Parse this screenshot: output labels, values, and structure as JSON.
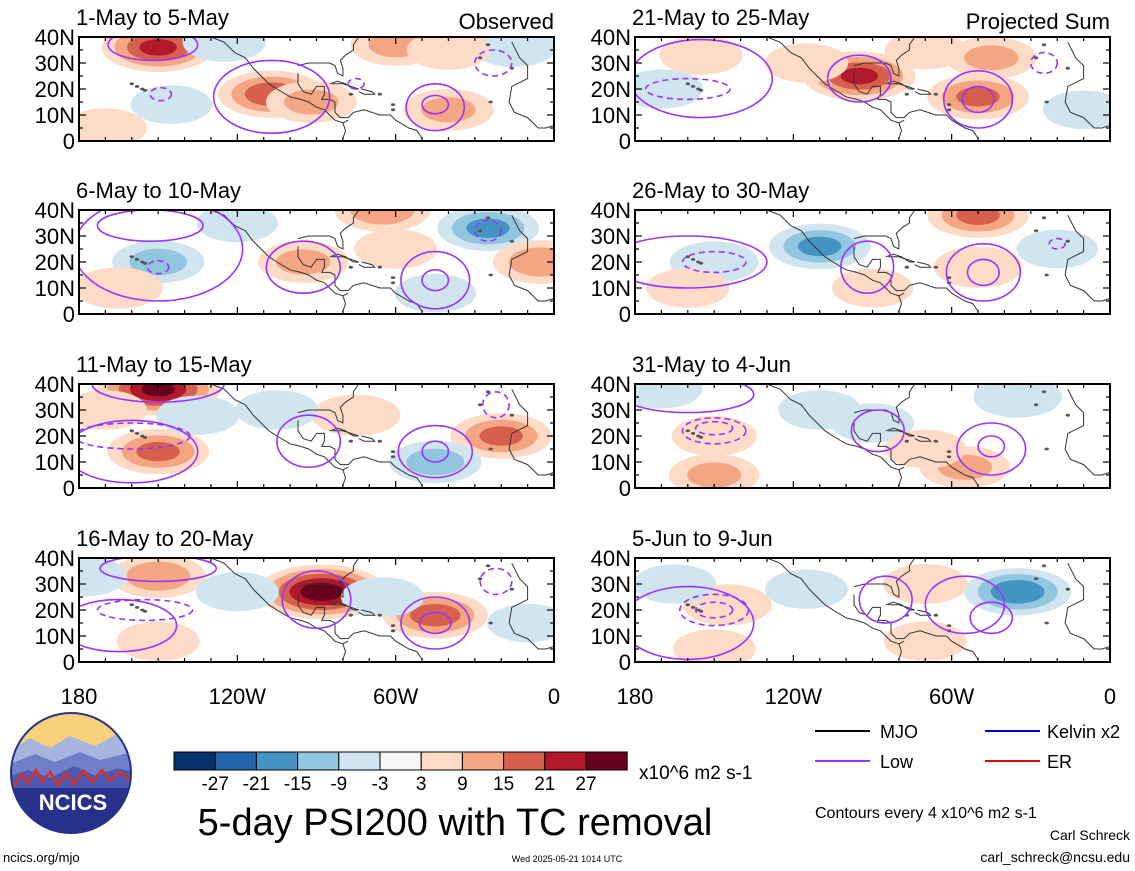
{
  "chart_data": [
    {
      "type": "heatmap",
      "title": "1-May to 5-May",
      "subtitle": "Observed",
      "xlim": [
        180,
        0
      ],
      "ylim": [
        0,
        40
      ],
      "yticks": [
        "0",
        "10N",
        "20N",
        "30N",
        "40N"
      ],
      "fill_blobs": [
        {
          "lon": 150,
          "lat": 36,
          "value": 21
        },
        {
          "lon": 107,
          "lat": 18,
          "value": 18
        },
        {
          "lon": 92,
          "lat": 15,
          "value": 9
        },
        {
          "lon": 40,
          "lat": 12,
          "value": 9
        },
        {
          "lon": 125,
          "lat": 38,
          "value": -5
        },
        {
          "lon": 170,
          "lat": 5,
          "value": 5
        },
        {
          "lon": 60,
          "lat": 37,
          "value": 9
        },
        {
          "lon": 15,
          "lat": 36,
          "value": -5
        },
        {
          "lon": 40,
          "lat": 35,
          "value": 5
        },
        {
          "lon": 145,
          "lat": 14,
          "value": -4
        }
      ],
      "low_contours": [
        {
          "lon": 107,
          "lat": 17,
          "rx": 22,
          "ry": 14,
          "style": "solid"
        },
        {
          "lon": 45,
          "lat": 13,
          "rx": 11,
          "ry": 9,
          "style": "solid"
        },
        {
          "lon": 45,
          "lat": 14,
          "rx": 5,
          "ry": 3.5,
          "style": "solid"
        },
        {
          "lon": 152,
          "lat": 37,
          "rx": 17,
          "ry": 6,
          "style": "solid"
        },
        {
          "lon": 23,
          "lat": 30,
          "rx": 7,
          "ry": 5,
          "style": "dashed"
        },
        {
          "lon": 149,
          "lat": 18,
          "rx": 4,
          "ry": 2.5,
          "style": "dashed"
        },
        {
          "lon": 75,
          "lat": 22,
          "rx": 3,
          "ry": 2,
          "style": "dashed"
        }
      ]
    },
    {
      "type": "heatmap",
      "title": "21-May to 25-May",
      "subtitle": "Projected Sum",
      "xlim": [
        180,
        0
      ],
      "ylim": [
        0,
        40
      ],
      "yticks": [
        "0",
        "10N",
        "20N",
        "30N",
        "40N"
      ],
      "fill_blobs": [
        {
          "lon": 95,
          "lat": 25,
          "value": 21
        },
        {
          "lon": 50,
          "lat": 17,
          "value": 15
        },
        {
          "lon": 155,
          "lat": 33,
          "value": 5
        },
        {
          "lon": 115,
          "lat": 30,
          "value": 5
        },
        {
          "lon": 45,
          "lat": 32,
          "value": 9
        },
        {
          "lon": 170,
          "lat": 20,
          "value": -5
        },
        {
          "lon": 10,
          "lat": 12,
          "value": -4
        },
        {
          "lon": 70,
          "lat": 35,
          "value": 4
        }
      ],
      "low_contours": [
        {
          "lon": 50,
          "lat": 16,
          "rx": 13,
          "ry": 11,
          "style": "solid"
        },
        {
          "lon": 50,
          "lat": 16,
          "rx": 6,
          "ry": 5,
          "style": "solid"
        },
        {
          "lon": 95,
          "lat": 24,
          "rx": 12,
          "ry": 9,
          "style": "solid"
        },
        {
          "lon": 160,
          "lat": 20,
          "rx": 16,
          "ry": 4,
          "style": "dashed"
        },
        {
          "lon": 25,
          "lat": 30,
          "rx": 5,
          "ry": 4,
          "style": "dashed"
        },
        {
          "lon": 155,
          "lat": 24,
          "rx": 27,
          "ry": 15,
          "style": "solid"
        }
      ]
    },
    {
      "type": "heatmap",
      "title": "6-May to 10-May",
      "xlim": [
        180,
        0
      ],
      "ylim": [
        0,
        40
      ],
      "yticks": [
        "0",
        "10N",
        "20N",
        "30N",
        "40N"
      ],
      "fill_blobs": [
        {
          "lon": 150,
          "lat": 20,
          "value": -10
        },
        {
          "lon": 25,
          "lat": 33,
          "value": -15
        },
        {
          "lon": 65,
          "lat": 40,
          "value": 12
        },
        {
          "lon": 95,
          "lat": 20,
          "value": 9
        },
        {
          "lon": 5,
          "lat": 20,
          "value": 12
        },
        {
          "lon": 165,
          "lat": 10,
          "value": 8
        },
        {
          "lon": 120,
          "lat": 35,
          "value": -4
        },
        {
          "lon": 60,
          "lat": 25,
          "value": 5
        },
        {
          "lon": 45,
          "lat": 8,
          "value": -4
        }
      ],
      "low_contours": [
        {
          "lon": 95,
          "lat": 18,
          "rx": 14,
          "ry": 10,
          "style": "solid"
        },
        {
          "lon": 45,
          "lat": 13,
          "rx": 13,
          "ry": 11,
          "style": "solid"
        },
        {
          "lon": 45,
          "lat": 13,
          "rx": 5,
          "ry": 4,
          "style": "solid"
        },
        {
          "lon": 153,
          "lat": 34,
          "rx": 20,
          "ry": 6,
          "style": "solid"
        },
        {
          "lon": 25,
          "lat": 32,
          "rx": 5,
          "ry": 4,
          "style": "dashed"
        },
        {
          "lon": 150,
          "lat": 18,
          "rx": 4,
          "ry": 2.5,
          "style": "dashed"
        },
        {
          "lon": 150,
          "lat": 25,
          "rx": 32,
          "ry": 20,
          "style": "solid"
        }
      ]
    },
    {
      "type": "heatmap",
      "title": "26-May to 30-May",
      "xlim": [
        180,
        0
      ],
      "ylim": [
        0,
        40
      ],
      "yticks": [
        "0",
        "10N",
        "20N",
        "30N",
        "40N"
      ],
      "fill_blobs": [
        {
          "lon": 110,
          "lat": 26,
          "value": -15
        },
        {
          "lon": 150,
          "lat": 20,
          "value": -8
        },
        {
          "lon": 50,
          "lat": 38,
          "value": 15
        },
        {
          "lon": 50,
          "lat": 18,
          "value": 8
        },
        {
          "lon": 160,
          "lat": 10,
          "value": 5
        },
        {
          "lon": 20,
          "lat": 25,
          "value": -4
        },
        {
          "lon": 90,
          "lat": 10,
          "value": 4
        }
      ],
      "low_contours": [
        {
          "lon": 48,
          "lat": 16,
          "rx": 14,
          "ry": 11,
          "style": "solid"
        },
        {
          "lon": 48,
          "lat": 16,
          "rx": 6,
          "ry": 5,
          "style": "solid"
        },
        {
          "lon": 92,
          "lat": 18,
          "rx": 10,
          "ry": 10,
          "style": "solid"
        },
        {
          "lon": 150,
          "lat": 20,
          "rx": 12,
          "ry": 4,
          "style": "dashed"
        },
        {
          "lon": 160,
          "lat": 20,
          "rx": 30,
          "ry": 10,
          "style": "solid"
        },
        {
          "lon": 20,
          "lat": 27,
          "rx": 3,
          "ry": 2,
          "style": "dashed"
        }
      ]
    },
    {
      "type": "heatmap",
      "title": "11-May to 15-May",
      "xlim": [
        180,
        0
      ],
      "ylim": [
        0,
        40
      ],
      "yticks": [
        "0",
        "10N",
        "20N",
        "30N",
        "40N"
      ],
      "fill_blobs": [
        {
          "lon": 150,
          "lat": 38,
          "value": 27
        },
        {
          "lon": 150,
          "lat": 14,
          "value": 15
        },
        {
          "lon": 20,
          "lat": 20,
          "value": 15
        },
        {
          "lon": 75,
          "lat": 28,
          "value": 8
        },
        {
          "lon": 45,
          "lat": 10,
          "value": -10
        },
        {
          "lon": 105,
          "lat": 30,
          "value": -5
        },
        {
          "lon": 135,
          "lat": 28,
          "value": -5
        },
        {
          "lon": 170,
          "lat": 30,
          "value": 5
        }
      ],
      "low_contours": [
        {
          "lon": 45,
          "lat": 14,
          "rx": 14,
          "ry": 10,
          "style": "solid"
        },
        {
          "lon": 45,
          "lat": 14,
          "rx": 5,
          "ry": 4,
          "style": "solid"
        },
        {
          "lon": 93,
          "lat": 18,
          "rx": 12,
          "ry": 10,
          "style": "solid"
        },
        {
          "lon": 160,
          "lat": 20,
          "rx": 22,
          "ry": 5,
          "style": "dashed"
        },
        {
          "lon": 22,
          "lat": 32,
          "rx": 5,
          "ry": 5,
          "style": "dashed"
        },
        {
          "lon": 150,
          "lat": 40,
          "rx": 25,
          "ry": 7,
          "style": "solid"
        },
        {
          "lon": 160,
          "lat": 14,
          "rx": 25,
          "ry": 12,
          "style": "solid"
        }
      ]
    },
    {
      "type": "heatmap",
      "title": "31-May to 4-Jun",
      "xlim": [
        180,
        0
      ],
      "ylim": [
        0,
        40
      ],
      "yticks": [
        "0",
        "10N",
        "20N",
        "30N",
        "40N"
      ],
      "fill_blobs": [
        {
          "lon": 150,
          "lat": 20,
          "value": 6
        },
        {
          "lon": 150,
          "lat": 5,
          "value": 9
        },
        {
          "lon": 55,
          "lat": 8,
          "value": 9
        },
        {
          "lon": 35,
          "lat": 35,
          "value": -8
        },
        {
          "lon": 110,
          "lat": 30,
          "value": -5
        },
        {
          "lon": 90,
          "lat": 25,
          "value": -5
        },
        {
          "lon": 170,
          "lat": 38,
          "value": -4
        },
        {
          "lon": 70,
          "lat": 15,
          "value": 4
        }
      ],
      "low_contours": [
        {
          "lon": 45,
          "lat": 15,
          "rx": 13,
          "ry": 10,
          "style": "solid"
        },
        {
          "lon": 45,
          "lat": 16,
          "rx": 5,
          "ry": 4,
          "style": "solid"
        },
        {
          "lon": 88,
          "lat": 22,
          "rx": 10,
          "ry": 8,
          "style": "solid"
        },
        {
          "lon": 150,
          "lat": 22,
          "rx": 12,
          "ry": 5,
          "style": "dashed"
        },
        {
          "lon": 150,
          "lat": 23,
          "rx": 7,
          "ry": 2.5,
          "style": "dashed"
        },
        {
          "lon": 160,
          "lat": 36,
          "rx": 25,
          "ry": 7,
          "style": "solid"
        }
      ]
    },
    {
      "type": "heatmap",
      "title": "16-May to 20-May",
      "xlim": [
        180,
        0
      ],
      "ylim": [
        0,
        40
      ],
      "yticks": [
        "0",
        "10N",
        "20N",
        "30N",
        "40N"
      ],
      "fill_blobs": [
        {
          "lon": 88,
          "lat": 27,
          "value": 30
        },
        {
          "lon": 45,
          "lat": 18,
          "value": 17
        },
        {
          "lon": 150,
          "lat": 33,
          "value": 12
        },
        {
          "lon": 178,
          "lat": 33,
          "value": -6
        },
        {
          "lon": 120,
          "lat": 27,
          "value": -5
        },
        {
          "lon": 65,
          "lat": 25,
          "value": -5
        },
        {
          "lon": 150,
          "lat": 8,
          "value": 5
        },
        {
          "lon": 10,
          "lat": 15,
          "value": -4
        }
      ],
      "low_contours": [
        {
          "lon": 45,
          "lat": 15,
          "rx": 13,
          "ry": 10,
          "style": "solid"
        },
        {
          "lon": 45,
          "lat": 15,
          "rx": 6,
          "ry": 4,
          "style": "solid"
        },
        {
          "lon": 90,
          "lat": 24,
          "rx": 13,
          "ry": 11,
          "style": "solid"
        },
        {
          "lon": 155,
          "lat": 20,
          "rx": 18,
          "ry": 4,
          "style": "dashed"
        },
        {
          "lon": 22,
          "lat": 31,
          "rx": 6,
          "ry": 5,
          "style": "dashed"
        },
        {
          "lon": 150,
          "lat": 36,
          "rx": 22,
          "ry": 5,
          "style": "solid"
        },
        {
          "lon": 165,
          "lat": 14,
          "rx": 22,
          "ry": 10,
          "style": "solid"
        }
      ]
    },
    {
      "type": "heatmap",
      "title": "5-Jun to 9-Jun",
      "xlim": [
        180,
        0
      ],
      "ylim": [
        0,
        40
      ],
      "yticks": [
        "0",
        "10N",
        "20N",
        "30N",
        "40N"
      ],
      "fill_blobs": [
        {
          "lon": 35,
          "lat": 27,
          "value": -18
        },
        {
          "lon": 145,
          "lat": 22,
          "value": 8
        },
        {
          "lon": 70,
          "lat": 30,
          "value": 6
        },
        {
          "lon": 165,
          "lat": 30,
          "value": -5
        },
        {
          "lon": 115,
          "lat": 28,
          "value": -5
        },
        {
          "lon": 70,
          "lat": 8,
          "value": 5
        },
        {
          "lon": 150,
          "lat": 5,
          "value": 5
        }
      ],
      "low_contours": [
        {
          "lon": 45,
          "lat": 17,
          "rx": 8,
          "ry": 6,
          "style": "solid"
        },
        {
          "lon": 85,
          "lat": 24,
          "rx": 10,
          "ry": 9,
          "style": "solid"
        },
        {
          "lon": 150,
          "lat": 20,
          "rx": 13,
          "ry": 6,
          "style": "dashed"
        },
        {
          "lon": 150,
          "lat": 20,
          "rx": 7,
          "ry": 3,
          "style": "dashed"
        },
        {
          "lon": 160,
          "lat": 15,
          "rx": 25,
          "ry": 14,
          "style": "solid"
        },
        {
          "lon": 55,
          "lat": 22,
          "rx": 15,
          "ry": 11,
          "style": "solid"
        }
      ]
    }
  ],
  "x_axis": {
    "ticks": [
      {
        "lon": 180,
        "label": "180"
      },
      {
        "lon": 120,
        "label": "120W"
      },
      {
        "lon": 60,
        "label": "60W"
      },
      {
        "lon": 0,
        "label": "0"
      }
    ]
  },
  "colorbar": {
    "labels": [
      "-27",
      "-21",
      "-15",
      "-9",
      "-3",
      "3",
      "9",
      "15",
      "21",
      "27"
    ],
    "colors": [
      "#08306b",
      "#2166ac",
      "#4393c3",
      "#92c5de",
      "#d1e5f0",
      "#f7f7f7",
      "#fddbc7",
      "#f4a582",
      "#d6604d",
      "#b2182b",
      "#67001f"
    ],
    "units": "x10^6 m2 s-1"
  },
  "main_title": "5-day PSI200 with TC removal",
  "contour_legend": {
    "items": [
      {
        "label": "MJO",
        "color": "#000000"
      },
      {
        "label": "Kelvin x2",
        "color": "#0000cc"
      },
      {
        "label": "Low",
        "color": "#9933ff"
      },
      {
        "label": "ER",
        "color": "#dd0000"
      }
    ],
    "note": "Contours every 4 x10^6 m2 s-1"
  },
  "logo": {
    "text": "NCICS"
  },
  "footer": {
    "url": "ncics.org/mjo",
    "timestamp": "Wed 2025-05-21 1014 UTC",
    "author": "Carl Schreck",
    "email": "carl_schreck@ncsu.edu"
  },
  "colors": {
    "low_contour": "#9933ff",
    "coast": "#333333"
  }
}
